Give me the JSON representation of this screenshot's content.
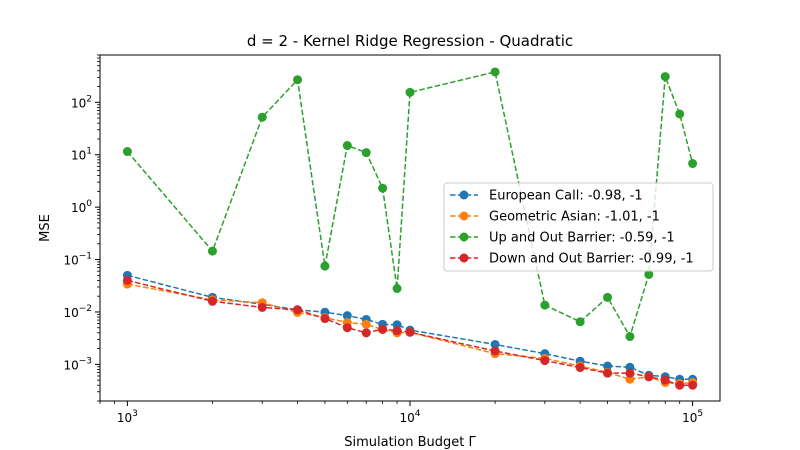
{
  "chart_data": {
    "type": "line",
    "title": "d = 2 - Kernel Ridge Regression - Quadratic",
    "xlabel": "Simulation Budget Γ",
    "ylabel": "MSE",
    "xscale": "log",
    "yscale": "log",
    "xlim": [
      800,
      125000
    ],
    "ylim": [
      0.0002,
      800
    ],
    "x_ticks": [
      {
        "value": 1000,
        "base": "10",
        "exp": "3"
      },
      {
        "value": 10000,
        "base": "10",
        "exp": "4"
      },
      {
        "value": 100000,
        "base": "10",
        "exp": "5"
      }
    ],
    "y_ticks": [
      {
        "value": 0.001,
        "base": "10",
        "exp": "−3"
      },
      {
        "value": 0.01,
        "base": "10",
        "exp": "−2"
      },
      {
        "value": 0.1,
        "base": "10",
        "exp": "−1"
      },
      {
        "value": 1,
        "base": "10",
        "exp": "0"
      },
      {
        "value": 10,
        "base": "10",
        "exp": "1"
      },
      {
        "value": 100,
        "base": "10",
        "exp": "2"
      }
    ],
    "grid": false,
    "legend_position": "center-right",
    "x": [
      1000,
      2000,
      3000,
      4000,
      5000,
      6000,
      7000,
      8000,
      9000,
      10000,
      20000,
      30000,
      40000,
      50000,
      60000,
      70000,
      80000,
      90000,
      100000
    ],
    "series": [
      {
        "name": "European Call: -0.98, -1",
        "color": "#1f77b4",
        "values": [
          0.05,
          0.019,
          0.014,
          0.011,
          0.0099,
          0.0085,
          0.0072,
          0.0058,
          0.0057,
          0.0045,
          0.0024,
          0.0016,
          0.00115,
          0.00093,
          0.00088,
          0.00062,
          0.00058,
          0.00052,
          0.00052
        ]
      },
      {
        "name": "Geometric Asian: -1.01, -1",
        "color": "#ff7f0e",
        "values": [
          0.034,
          0.017,
          0.015,
          0.0098,
          0.0078,
          0.0063,
          0.0058,
          0.0046,
          0.004,
          0.0041,
          0.0016,
          0.0013,
          0.00093,
          0.0007,
          0.00052,
          0.00058,
          0.00045,
          0.00043,
          0.00045
        ]
      },
      {
        "name": "Up and Out Barrier: -0.59, -1",
        "color": "#2ca02c",
        "values": [
          11.5,
          0.145,
          52,
          270,
          0.075,
          15,
          11,
          2.3,
          0.028,
          155,
          380,
          0.0135,
          0.0065,
          0.019,
          0.0034,
          0.052,
          310,
          60,
          6.8
        ]
      },
      {
        "name": "Down and Out Barrier: -0.99, -1",
        "color": "#d62728",
        "values": [
          0.04,
          0.016,
          0.0122,
          0.011,
          0.0075,
          0.005,
          0.004,
          0.0047,
          0.0044,
          0.0041,
          0.0018,
          0.00118,
          0.00087,
          0.00068,
          0.00068,
          0.00058,
          0.0005,
          0.0004,
          0.0004
        ]
      }
    ]
  }
}
